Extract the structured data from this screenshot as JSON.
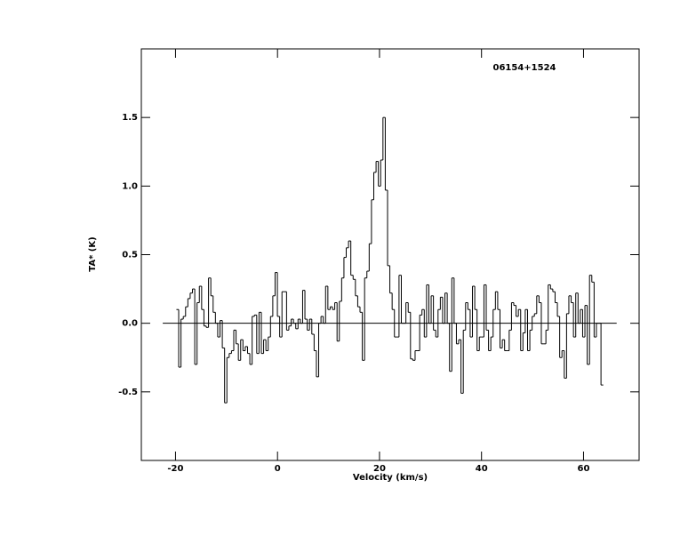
{
  "chart_data": {
    "type": "step",
    "annotation": "06154+1524",
    "xlabel": "Velocity (km/s)",
    "ylabel": "TA* (K)",
    "xlim": [
      -26.7,
      70.9
    ],
    "ylim": [
      -1.0,
      2.0
    ],
    "xticks": [
      -20,
      0,
      20,
      40,
      60
    ],
    "yticks": [
      -0.5,
      {
        "value": 0,
        "label": "0.0"
      },
      0.5,
      {
        "value": 1,
        "label": "1.0"
      },
      1.5
    ],
    "color": "#000000",
    "hline": {
      "y": 0,
      "xrange": [
        -22.5,
        66.5
      ]
    },
    "x": [
      -19.6,
      -19.15,
      -18.7,
      -18.25,
      -17.8,
      -17.35,
      -16.9,
      -16.45,
      -16,
      -15.55,
      -15.1,
      -14.65,
      -14.2,
      -13.75,
      -13.3,
      -12.85,
      -12.4,
      -11.95,
      -11.5,
      -11.05,
      -10.6,
      -10.15,
      -9.7,
      -9.25,
      -8.8,
      -8.35,
      -7.9,
      -7.45,
      -7,
      -6.55,
      -6.1,
      -5.65,
      -5.2,
      -4.75,
      -4.3,
      -3.85,
      -3.4,
      -2.95,
      -2.5,
      -2.05,
      -1.6,
      -1.15,
      -0.7,
      -0.25,
      0.2,
      0.65,
      1.1,
      1.55,
      2,
      2.45,
      2.9,
      3.35,
      3.8,
      4.25,
      4.7,
      5.15,
      5.6,
      6.05,
      6.5,
      6.95,
      7.4,
      7.85,
      8.3,
      8.75,
      9.2,
      9.65,
      10.1,
      10.55,
      11,
      11.45,
      11.9,
      12.35,
      12.8,
      13.25,
      13.7,
      14.15,
      14.6,
      15.05,
      15.5,
      15.95,
      16.4,
      16.85,
      17.3,
      17.75,
      18.2,
      18.65,
      19.1,
      19.55,
      20,
      20.45,
      20.9,
      21.35,
      21.8,
      22.25,
      22.7,
      23.15,
      23.6,
      24.05,
      24.5,
      24.95,
      25.4,
      25.85,
      26.3,
      26.75,
      27.2,
      27.65,
      28.1,
      28.55,
      29,
      29.45,
      29.9,
      30.35,
      30.8,
      31.25,
      31.7,
      32.15,
      32.6,
      33.05,
      33.5,
      33.95,
      34.4,
      34.85,
      35.3,
      35.75,
      36.2,
      36.65,
      37.1,
      37.55,
      38,
      38.45,
      38.9,
      39.35,
      39.8,
      40.25,
      40.7,
      41.15,
      41.6,
      42.05,
      42.5,
      42.95,
      43.4,
      43.85,
      44.3,
      44.75,
      45.2,
      45.65,
      46.1,
      46.55,
      47,
      47.45,
      47.9,
      48.35,
      48.8,
      49.25,
      49.7,
      50.15,
      50.6,
      51.05,
      51.5,
      51.95,
      52.4,
      52.85,
      53.3,
      53.75,
      54.2,
      54.65,
      55.1,
      55.55,
      56,
      56.45,
      56.9,
      57.35,
      57.8,
      58.25,
      58.7,
      59.15,
      59.6,
      60.05,
      60.5,
      60.95,
      61.4,
      61.85,
      62.3,
      62.75,
      63.2,
      63.65
    ],
    "values": [
      0.1,
      -0.32,
      0.03,
      0.05,
      0.12,
      0.18,
      0.22,
      0.25,
      -0.3,
      0.15,
      0.27,
      0.1,
      -0.02,
      -0.03,
      0.33,
      0.2,
      0.08,
      0.0,
      -0.1,
      0.02,
      -0.18,
      -0.58,
      -0.25,
      -0.22,
      -0.2,
      -0.05,
      -0.15,
      -0.27,
      -0.12,
      -0.2,
      -0.17,
      -0.22,
      -0.3,
      0.05,
      0.06,
      -0.22,
      0.08,
      -0.22,
      -0.12,
      -0.2,
      -0.1,
      0.05,
      0.2,
      0.37,
      0.05,
      -0.1,
      0.23,
      0.23,
      -0.05,
      -0.02,
      0.03,
      0.0,
      -0.04,
      0.03,
      0.0,
      0.24,
      0.03,
      -0.05,
      0.03,
      -0.08,
      -0.2,
      -0.39,
      0.0,
      0.05,
      0.0,
      0.27,
      0.1,
      0.12,
      0.1,
      0.15,
      -0.13,
      0.16,
      0.33,
      0.48,
      0.55,
      0.6,
      0.35,
      0.32,
      0.2,
      0.12,
      0.08,
      -0.27,
      0.33,
      0.38,
      0.58,
      0.9,
      1.1,
      1.18,
      1.0,
      1.19,
      1.5,
      0.97,
      0.42,
      0.22,
      0.1,
      -0.1,
      -0.1,
      0.35,
      0.0,
      0.0,
      0.15,
      0.08,
      -0.26,
      -0.27,
      -0.2,
      -0.2,
      0.06,
      0.1,
      -0.1,
      0.28,
      0.0,
      0.2,
      -0.05,
      -0.1,
      0.1,
      0.19,
      0.0,
      0.22,
      0.0,
      -0.35,
      0.33,
      0.0,
      -0.15,
      -0.12,
      -0.51,
      -0.05,
      0.15,
      0.1,
      -0.1,
      0.27,
      0.1,
      -0.2,
      -0.1,
      -0.1,
      0.28,
      -0.05,
      -0.2,
      -0.1,
      0.1,
      0.23,
      0.1,
      -0.18,
      -0.12,
      -0.2,
      -0.2,
      -0.05,
      0.15,
      0.13,
      0.05,
      0.1,
      -0.2,
      -0.07,
      0.1,
      -0.2,
      -0.05,
      0.05,
      0.07,
      0.2,
      0.15,
      -0.15,
      -0.15,
      -0.05,
      0.28,
      0.25,
      0.23,
      0.15,
      0.05,
      -0.25,
      -0.2,
      -0.4,
      0.07,
      0.2,
      0.15,
      -0.1,
      0.22,
      0.0,
      0.1,
      -0.1,
      0.13,
      -0.3,
      0.35,
      0.3,
      -0.1,
      0.0,
      0.0,
      -0.45
    ]
  }
}
